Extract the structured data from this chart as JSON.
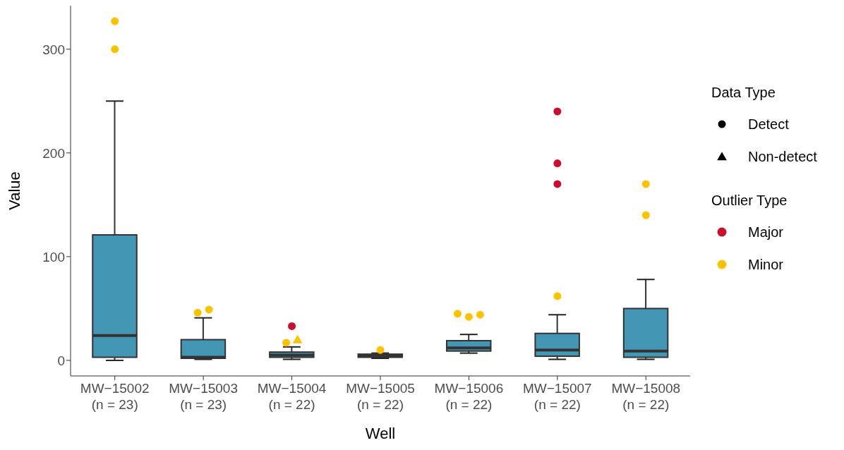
{
  "chart_data": {
    "type": "box",
    "xlabel": "Well",
    "ylabel": "Value",
    "categories": [
      "MW−15002\n(n = 23)",
      "MW−15003\n(n = 23)",
      "MW−15004\n(n = 22)",
      "MW−15005\n(n = 22)",
      "MW−15006\n(n = 22)",
      "MW−15007\n(n = 22)",
      "MW−15008\n(n = 22)"
    ],
    "ylim": [
      -15,
      342
    ],
    "yticks": [
      0,
      100,
      200,
      300
    ],
    "legend": "right",
    "legend_title": "Outlier Type",
    "annotations": [
      "Data Type",
      "Detect",
      "Non-detect"
    ],
    "series": [
      {
        "color": "#4396b4",
        "boxes": [
          {
            "low": 0,
            "q1": 3,
            "median": 24,
            "q3": 121,
            "high": 250
          },
          {
            "low": 1,
            "q1": 2,
            "median": 3,
            "q3": 20,
            "high": 41
          },
          {
            "low": 1,
            "q1": 3,
            "median": 5,
            "q3": 8,
            "high": 13
          },
          {
            "low": 2,
            "q1": 3,
            "median": 4,
            "q3": 6,
            "high": 7
          },
          {
            "low": 7,
            "q1": 9,
            "median": 12,
            "q3": 19,
            "high": 25
          },
          {
            "low": 1,
            "q1": 4,
            "median": 10,
            "q3": 26,
            "high": 44
          },
          {
            "low": 1,
            "q1": 3,
            "median": 9,
            "q3": 50,
            "high": 78
          }
        ]
      },
      {
        "type": "scatter",
        "name": "Major",
        "color": "#c8102e",
        "marker": "circle",
        "x": [
          "MW−15004\n(n = 22)",
          "MW−15007\n(n = 22)",
          "MW−15007\n(n = 22)",
          "MW−15007\n(n = 22)"
        ],
        "values": [
          33,
          240,
          190,
          170
        ]
      },
      {
        "type": "scatter",
        "name": "Minor",
        "color": "#fcc200",
        "marker": "circle",
        "x": [
          "MW−15002\n(n = 23)",
          "MW−15002\n(n = 23)",
          "MW−15003\n(n = 23)",
          "MW−15003\n(n = 23)",
          "MW−15004\n(n = 22)",
          "MW−15005\n(n = 22)",
          "MW−15006\n(n = 22)",
          "MW−15006\n(n = 22)",
          "MW−15006\n(n = 22)",
          "MW−15007\n(n = 22)",
          "MW−15008\n(n = 22)",
          "MW−15008\n(n = 22)"
        ],
        "values": [
          327,
          300,
          46,
          49,
          17,
          10,
          45,
          42,
          44,
          62,
          170,
          140
        ]
      },
      {
        "type": "scatter",
        "color": "#fcc200",
        "marker": "triangle",
        "x": [
          "MW−15004\n(n = 22)"
        ],
        "values": [
          20
        ]
      }
    ]
  }
}
